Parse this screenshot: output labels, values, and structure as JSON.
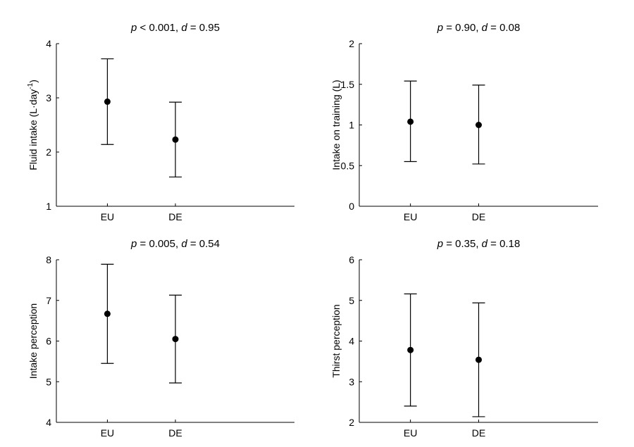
{
  "chart_data": [
    {
      "type": "errorbar",
      "title": {
        "p_sym": "p",
        "p_text": " < 0.001, ",
        "d_sym": "d",
        "d_text": " = 0.95"
      },
      "ylabel": {
        "main": "Fluid intake (L·day",
        "sup": "-1",
        "tail": ")"
      },
      "categories": [
        "EU",
        "DE"
      ],
      "ylim": [
        1,
        4
      ],
      "yticks": [
        1,
        2,
        3,
        4
      ],
      "ytick_labels": [
        "1",
        "2",
        "3",
        "4"
      ],
      "series": [
        {
          "values": [
            2.93,
            2.23
          ],
          "lower": [
            2.14,
            1.54
          ],
          "upper": [
            3.72,
            2.92
          ]
        }
      ]
    },
    {
      "type": "errorbar",
      "title": {
        "p_sym": "p",
        "p_text": " = 0.90, ",
        "d_sym": "d",
        "d_text": " = 0.08"
      },
      "ylabel": {
        "main": "Intake on training (L)",
        "sup": "",
        "tail": ""
      },
      "categories": [
        "EU",
        "DE"
      ],
      "ylim": [
        0,
        2
      ],
      "yticks": [
        0,
        0.5,
        1,
        1.5,
        2
      ],
      "ytick_labels": [
        "0",
        "0.5",
        "1",
        "1.5",
        "2"
      ],
      "series": [
        {
          "values": [
            1.04,
            1.0
          ],
          "lower": [
            0.55,
            0.52
          ],
          "upper": [
            1.54,
            1.49
          ]
        }
      ]
    },
    {
      "type": "errorbar",
      "title": {
        "p_sym": "p",
        "p_text": " = 0.005, ",
        "d_sym": "d",
        "d_text": " = 0.54"
      },
      "ylabel": {
        "main": "Intake perception",
        "sup": "",
        "tail": ""
      },
      "categories": [
        "EU",
        "DE"
      ],
      "ylim": [
        4,
        8
      ],
      "yticks": [
        4,
        5,
        6,
        7,
        8
      ],
      "ytick_labels": [
        "4",
        "5",
        "6",
        "7",
        "8"
      ],
      "series": [
        {
          "values": [
            6.67,
            6.05
          ],
          "lower": [
            5.45,
            4.97
          ],
          "upper": [
            7.89,
            7.13
          ]
        }
      ]
    },
    {
      "type": "errorbar",
      "title": {
        "p_sym": "p",
        "p_text": " = 0.35, ",
        "d_sym": "d",
        "d_text": " = 0.18"
      },
      "ylabel": {
        "main": "Thirst perception",
        "sup": "",
        "tail": ""
      },
      "categories": [
        "EU",
        "DE"
      ],
      "ylim": [
        2,
        6
      ],
      "yticks": [
        2,
        3,
        4,
        5,
        6
      ],
      "ytick_labels": [
        "2",
        "3",
        "4",
        "5",
        "6"
      ],
      "series": [
        {
          "values": [
            3.78,
            3.54
          ],
          "lower": [
            2.4,
            2.14
          ],
          "upper": [
            5.16,
            4.94
          ]
        }
      ]
    }
  ]
}
